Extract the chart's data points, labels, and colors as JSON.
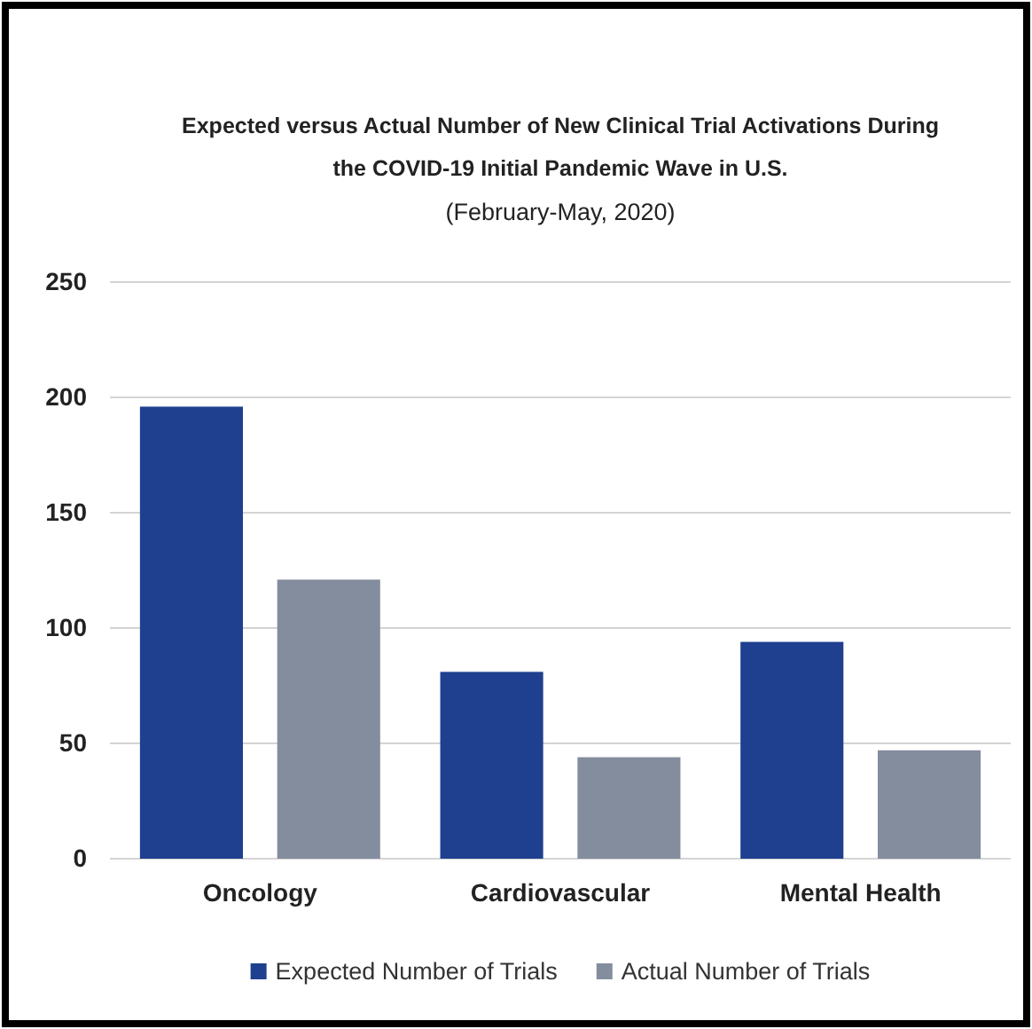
{
  "chart_data": {
    "type": "bar",
    "title": "Expected versus Actual Number of New Clinical Trial Activations During the COVID-19 Initial Pandemic Wave in U.S.",
    "subtitle": "(February-May, 2020)",
    "categories": [
      "Oncology",
      "Cardiovascular",
      "Mental Health"
    ],
    "series": [
      {
        "name": "Expected Number of Trials",
        "color": "#1f3f8f",
        "values": [
          196,
          81,
          94
        ]
      },
      {
        "name": "Actual Number of Trials",
        "color": "#848d9e",
        "values": [
          121,
          44,
          47
        ]
      }
    ],
    "ylim": [
      0,
      250
    ],
    "yticks": [
      0,
      50,
      100,
      150,
      200,
      250
    ],
    "grid": "y",
    "legend": "bottom"
  }
}
